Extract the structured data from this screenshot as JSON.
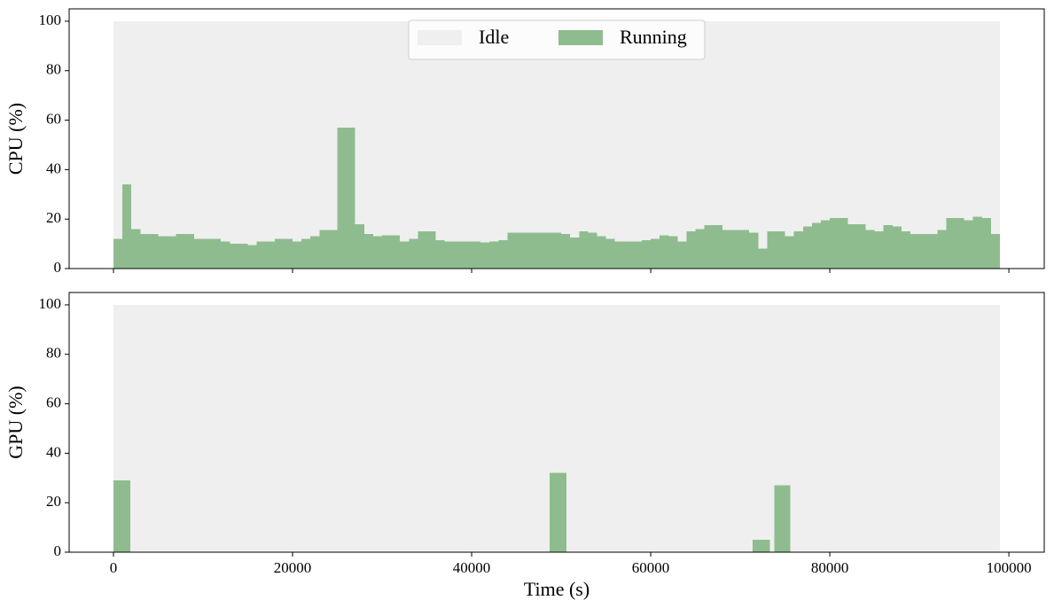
{
  "chart_data": [
    {
      "type": "histogram",
      "ylabel": "CPU (%)",
      "xlim": [
        -4950,
        103950
      ],
      "ylim": [
        0,
        105
      ],
      "yticks": [
        0,
        20,
        40,
        60,
        80,
        100
      ],
      "legend": "upper center",
      "series": [
        {
          "name": "Idle",
          "color": "#efefef",
          "bins": [
            0,
            99000
          ],
          "values": [
            100
          ]
        },
        {
          "name": "Running",
          "color": "#8fbc8f",
          "bins": [
            0,
            1000,
            2000,
            3000,
            4000,
            5000,
            6000,
            7000,
            8000,
            9000,
            10000,
            11000,
            12000,
            13000,
            14000,
            15000,
            16000,
            17000,
            18000,
            19000,
            20000,
            21000,
            22000,
            23000,
            24000,
            25000,
            26000,
            27000,
            28000,
            29000,
            30000,
            31000,
            32000,
            33000,
            34000,
            35000,
            36000,
            37000,
            38000,
            39000,
            40000,
            41000,
            42000,
            43000,
            44000,
            45000,
            46000,
            47000,
            48000,
            49000,
            50000,
            51000,
            52000,
            53000,
            54000,
            55000,
            56000,
            57000,
            58000,
            59000,
            60000,
            61000,
            62000,
            63000,
            64000,
            65000,
            66000,
            67000,
            68000,
            69000,
            70000,
            71000,
            72000,
            73000,
            74000,
            75000,
            76000,
            77000,
            78000,
            79000,
            80000,
            81000,
            82000,
            83000,
            84000,
            85000,
            86000,
            87000,
            88000,
            89000,
            90000,
            91000,
            92000,
            93000,
            94000,
            95000,
            96000,
            97000,
            98000,
            99000
          ],
          "values": [
            12,
            34,
            16,
            14,
            14,
            13,
            13,
            14,
            14,
            12,
            12,
            12,
            11,
            10,
            10,
            9.5,
            11,
            11,
            12,
            12,
            11,
            12,
            13,
            15.5,
            15.5,
            57,
            57,
            18,
            14,
            13,
            13.5,
            13.5,
            11,
            12,
            15,
            15,
            11.5,
            11,
            11,
            11,
            11,
            10.5,
            11,
            11.5,
            14.5,
            14.5,
            14.5,
            14.5,
            14.5,
            14.5,
            14,
            12.5,
            15,
            14.5,
            13,
            12,
            11,
            11,
            11,
            11.5,
            12,
            13.5,
            13,
            11,
            15,
            16,
            17.5,
            17.5,
            15.5,
            15.5,
            15.5,
            14.5,
            8,
            15,
            15,
            13,
            15,
            17,
            18.5,
            19.5,
            20.5,
            20.5,
            18,
            18,
            15.5,
            15,
            17.5,
            17,
            15,
            14,
            14,
            14,
            15.5,
            20.5,
            20.5,
            19.5,
            21,
            20.5,
            14
          ]
        }
      ]
    },
    {
      "type": "histogram",
      "ylabel": "GPU (%)",
      "xlabel": "Time (s)",
      "xlim": [
        -4950,
        103950
      ],
      "ylim": [
        0,
        105
      ],
      "yticks": [
        0,
        20,
        40,
        60,
        80,
        100
      ],
      "xticks": [
        0,
        20000,
        40000,
        60000,
        80000,
        100000
      ],
      "series": [
        {
          "color": "#efefef",
          "bins": [
            0,
            99000
          ],
          "values": [
            100
          ]
        },
        {
          "color": "#8fbc8f",
          "bins": [
            0,
            1900,
            48700,
            50600,
            71400,
            73300,
            73800,
            75600
          ],
          "values": [
            29,
            0,
            32,
            0,
            5,
            0,
            27
          ]
        }
      ]
    }
  ]
}
